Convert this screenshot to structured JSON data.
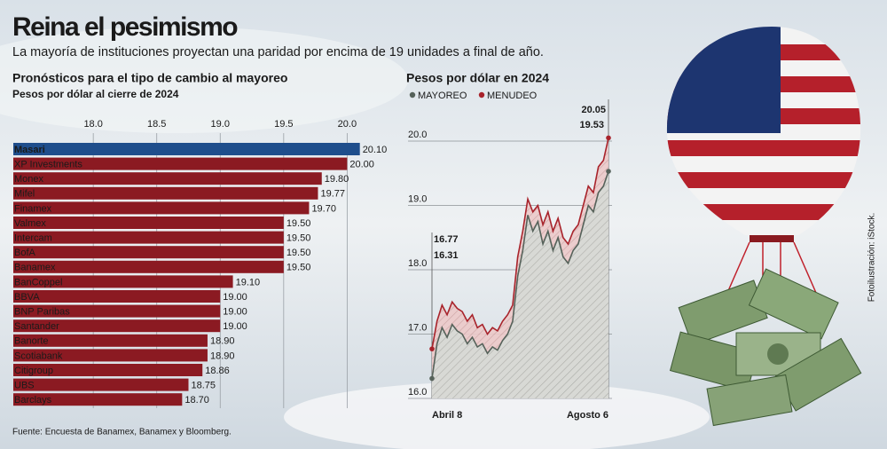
{
  "header": {
    "title": "Reina el pesimismo",
    "subtitle": "La mayoría de instituciones proyectan una paridad por encima de 19 unidades a final de año."
  },
  "footer": {
    "source": "Fuente: Encuesta de Banamex, Banamex y Bloomberg.",
    "credit": "Fotoilustración: iStock."
  },
  "chart_data": [
    {
      "type": "bar",
      "orientation": "horizontal",
      "title": "Pronósticos para el tipo de cambio al mayoreo",
      "subtitle": "Pesos por dólar al cierre de 2024",
      "categories": [
        "Masari",
        "XP Investments",
        "Monex",
        "Mifel",
        "Finamex",
        "Valmex",
        "Intercam",
        "BofA",
        "Banamex",
        "BanCoppel",
        "BBVA",
        "BNP Paribas",
        "Santander",
        "Banorte",
        "Scotiabank",
        "Citigroup",
        "UBS",
        "Barclays"
      ],
      "values": [
        20.1,
        20.0,
        19.8,
        19.77,
        19.7,
        19.5,
        19.5,
        19.5,
        19.5,
        19.1,
        19.0,
        19.0,
        19.0,
        18.9,
        18.9,
        18.86,
        18.75,
        18.7
      ],
      "value_labels": [
        "20.10",
        "20.00",
        "19.80",
        "19.77",
        "19.70",
        "19.50",
        "19.50",
        "19.50",
        "19.50",
        "19.10",
        "19.00",
        "19.00",
        "19.00",
        "18.90",
        "18.90",
        "18.86",
        "18.75",
        "18.70"
      ],
      "colors": [
        "#1f4e8c",
        "#8b1a22",
        "#8b1a22",
        "#8b1a22",
        "#8b1a22",
        "#8b1a22",
        "#8b1a22",
        "#8b1a22",
        "#8b1a22",
        "#8b1a22",
        "#8b1a22",
        "#8b1a22",
        "#8b1a22",
        "#8b1a22",
        "#8b1a22",
        "#8b1a22",
        "#8b1a22",
        "#8b1a22"
      ],
      "xlim": [
        17.37,
        20.2
      ],
      "xticks": [
        {
          "value": 18,
          "label": "18.0"
        },
        {
          "value": 18.5,
          "label": "18.5"
        },
        {
          "value": 19,
          "label": "19.0"
        },
        {
          "value": 19.5,
          "label": "19.5"
        },
        {
          "value": 20,
          "label": "20.0"
        }
      ],
      "grid": true
    },
    {
      "type": "line",
      "title": "Pesos por dólar en 2024",
      "categories": [
        "Abril 8",
        null,
        null,
        null,
        null,
        null,
        null,
        null,
        null,
        null,
        null,
        null,
        null,
        null,
        null,
        null,
        null,
        null,
        null,
        null,
        null,
        null,
        null,
        null,
        null,
        null,
        null,
        null,
        null,
        null,
        null,
        null,
        null,
        null,
        null,
        "Agosto 6"
      ],
      "series": [
        {
          "name": "MAYOREO",
          "color": "#56625a",
          "values": [
            16.31,
            16.85,
            17.1,
            16.95,
            17.15,
            17.05,
            17.0,
            16.85,
            16.95,
            16.8,
            16.85,
            16.7,
            16.8,
            16.75,
            16.9,
            17.0,
            17.2,
            17.9,
            18.3,
            18.85,
            18.6,
            18.75,
            18.4,
            18.6,
            18.3,
            18.5,
            18.2,
            18.1,
            18.3,
            18.4,
            18.7,
            19.0,
            18.9,
            19.2,
            19.3,
            19.53
          ]
        },
        {
          "name": "MENUDEO",
          "color": "#a8232b",
          "values": [
            16.77,
            17.2,
            17.45,
            17.3,
            17.5,
            17.4,
            17.35,
            17.2,
            17.3,
            17.1,
            17.15,
            17.0,
            17.1,
            17.05,
            17.2,
            17.3,
            17.45,
            18.2,
            18.6,
            19.1,
            18.9,
            19.0,
            18.7,
            18.9,
            18.6,
            18.8,
            18.5,
            18.4,
            18.6,
            18.7,
            19.0,
            19.3,
            19.2,
            19.6,
            19.7,
            20.05
          ]
        }
      ],
      "ylim": [
        16,
        20.4
      ],
      "yticks": [
        {
          "value": 16,
          "label": "16.0"
        },
        {
          "value": 17,
          "label": "17.0"
        },
        {
          "value": 18,
          "label": "18.0"
        },
        {
          "value": 19,
          "label": "19.0"
        },
        {
          "value": 20,
          "label": "20.0"
        }
      ],
      "grid": true
    }
  ]
}
